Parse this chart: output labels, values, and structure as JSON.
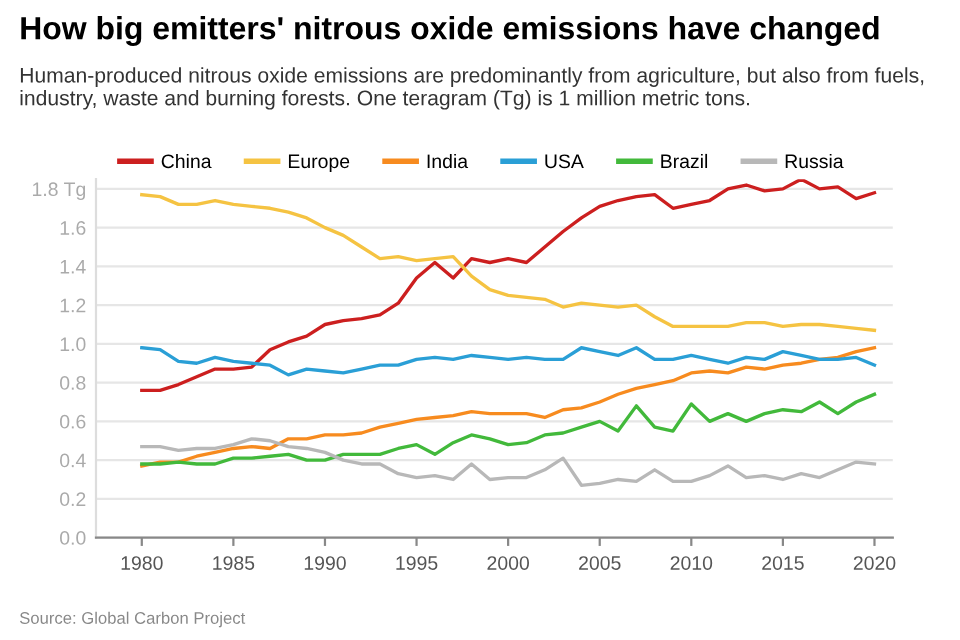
{
  "chart_data": {
    "type": "line",
    "title": "How big emitters' nitrous oxide emissions have changed",
    "subtitle": "Human-produced nitrous oxide emissions are predominantly from agriculture, but also from fuels, industry, waste and burning forests. One teragram (Tg) is 1 million metric tons.",
    "annotations": [
      "Source: Global Carbon Project"
    ],
    "x": [
      1980,
      1981,
      1982,
      1983,
      1984,
      1985,
      1986,
      1987,
      1988,
      1989,
      1990,
      1991,
      1992,
      1993,
      1994,
      1995,
      1996,
      1997,
      1998,
      1999,
      2000,
      2001,
      2002,
      2003,
      2004,
      2005,
      2006,
      2007,
      2008,
      2009,
      2010,
      2011,
      2012,
      2013,
      2014,
      2015,
      2016,
      2017,
      2018,
      2019,
      2020
    ],
    "series": [
      {
        "name": "China",
        "color": "#cc1f1f",
        "values": [
          0.76,
          0.76,
          0.79,
          0.83,
          0.87,
          0.87,
          0.88,
          0.97,
          1.01,
          1.04,
          1.1,
          1.12,
          1.13,
          1.15,
          1.21,
          1.34,
          1.42,
          1.34,
          1.44,
          1.42,
          1.44,
          1.42,
          1.5,
          1.58,
          1.65,
          1.71,
          1.74,
          1.76,
          1.77,
          1.7,
          1.72,
          1.74,
          1.8,
          1.82,
          1.79,
          1.8,
          1.85,
          1.8,
          1.81,
          1.75,
          1.78
        ]
      },
      {
        "name": "Europe",
        "color": "#f5c342",
        "values": [
          1.77,
          1.76,
          1.72,
          1.72,
          1.74,
          1.72,
          1.71,
          1.7,
          1.68,
          1.65,
          1.6,
          1.56,
          1.5,
          1.44,
          1.45,
          1.43,
          1.44,
          1.45,
          1.35,
          1.28,
          1.25,
          1.24,
          1.23,
          1.19,
          1.21,
          1.2,
          1.19,
          1.2,
          1.14,
          1.09,
          1.09,
          1.09,
          1.09,
          1.11,
          1.11,
          1.09,
          1.1,
          1.1,
          1.09,
          1.08,
          1.07
        ]
      },
      {
        "name": "India",
        "color": "#f78b1f",
        "values": [
          0.37,
          0.39,
          0.39,
          0.42,
          0.44,
          0.46,
          0.47,
          0.46,
          0.51,
          0.51,
          0.53,
          0.53,
          0.54,
          0.57,
          0.59,
          0.61,
          0.62,
          0.63,
          0.65,
          0.64,
          0.64,
          0.64,
          0.62,
          0.66,
          0.67,
          0.7,
          0.74,
          0.77,
          0.79,
          0.81,
          0.85,
          0.86,
          0.85,
          0.88,
          0.87,
          0.89,
          0.9,
          0.92,
          0.93,
          0.96,
          0.98
        ]
      },
      {
        "name": "USA",
        "color": "#2a9fd6",
        "values": [
          0.98,
          0.97,
          0.91,
          0.9,
          0.93,
          0.91,
          0.9,
          0.89,
          0.84,
          0.87,
          0.86,
          0.85,
          0.87,
          0.89,
          0.89,
          0.92,
          0.93,
          0.92,
          0.94,
          0.93,
          0.92,
          0.93,
          0.92,
          0.92,
          0.98,
          0.96,
          0.94,
          0.98,
          0.92,
          0.92,
          0.94,
          0.92,
          0.9,
          0.93,
          0.92,
          0.96,
          0.94,
          0.92,
          0.92,
          0.93,
          0.89
        ]
      },
      {
        "name": "Brazil",
        "color": "#42b93b",
        "values": [
          0.38,
          0.38,
          0.39,
          0.38,
          0.38,
          0.41,
          0.41,
          0.42,
          0.43,
          0.4,
          0.4,
          0.43,
          0.43,
          0.43,
          0.46,
          0.48,
          0.43,
          0.49,
          0.53,
          0.51,
          0.48,
          0.49,
          0.53,
          0.54,
          0.57,
          0.6,
          0.55,
          0.68,
          0.57,
          0.55,
          0.69,
          0.6,
          0.64,
          0.6,
          0.64,
          0.66,
          0.65,
          0.7,
          0.64,
          0.7,
          0.74
        ]
      },
      {
        "name": "Russia",
        "color": "#b8b8b8",
        "values": [
          0.47,
          0.47,
          0.45,
          0.46,
          0.46,
          0.48,
          0.51,
          0.5,
          0.47,
          0.46,
          0.44,
          0.4,
          0.38,
          0.38,
          0.33,
          0.31,
          0.32,
          0.3,
          0.38,
          0.3,
          0.31,
          0.31,
          0.35,
          0.41,
          0.27,
          0.28,
          0.3,
          0.29,
          0.35,
          0.29,
          0.29,
          0.32,
          0.37,
          0.31,
          0.32,
          0.3,
          0.33,
          0.31,
          0.35,
          0.39,
          0.38
        ]
      }
    ],
    "xlim": [
      1977.5,
      2021
    ],
    "xticks": [
      1980,
      1985,
      1990,
      1995,
      2000,
      2005,
      2010,
      2015,
      2020
    ],
    "ylim": [
      0,
      1.85
    ],
    "yticks": [
      {
        "value": 0,
        "label": "0.0"
      },
      {
        "value": 0.2,
        "label": "0.2"
      },
      {
        "value": 0.4,
        "label": "0.4"
      },
      {
        "value": 0.6,
        "label": "0.6"
      },
      {
        "value": 0.8,
        "label": "0.8"
      },
      {
        "value": 1.0,
        "label": "1.0"
      },
      {
        "value": 1.2,
        "label": "1.2"
      },
      {
        "value": 1.4,
        "label": "1.4"
      },
      {
        "value": 1.6,
        "label": "1.6"
      },
      {
        "value": 1.8,
        "label": "1.8 Tg"
      }
    ],
    "grid": "y",
    "legend": "top",
    "marker": "none",
    "line_style": "solid"
  }
}
